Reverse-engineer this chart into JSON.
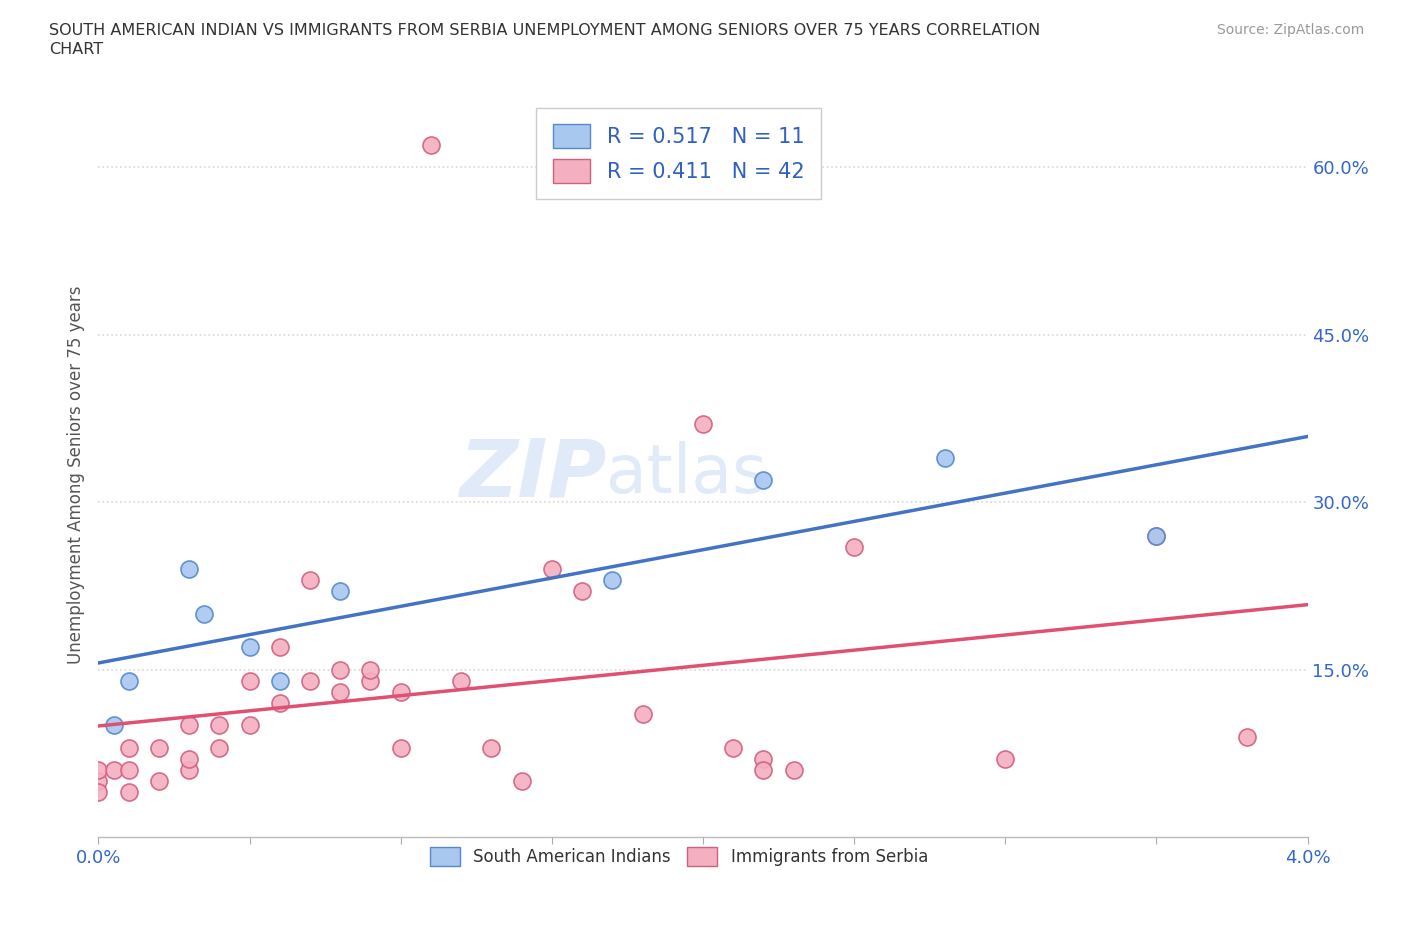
{
  "title_line1": "SOUTH AMERICAN INDIAN VS IMMIGRANTS FROM SERBIA UNEMPLOYMENT AMONG SENIORS OVER 75 YEARS CORRELATION",
  "title_line2": "CHART",
  "source": "Source: ZipAtlas.com",
  "ylabel": "Unemployment Among Seniors over 75 years",
  "xlim": [
    0.0,
    0.04
  ],
  "ylim": [
    0.0,
    0.65
  ],
  "xticks": [
    0.0,
    0.005,
    0.01,
    0.015,
    0.02,
    0.025,
    0.03,
    0.035,
    0.04
  ],
  "xticklabels": [
    "0.0%",
    "",
    "",
    "",
    "",
    "",
    "",
    "",
    "4.0%"
  ],
  "yticks": [
    0.15,
    0.3,
    0.45,
    0.6
  ],
  "yticklabels": [
    "15.0%",
    "30.0%",
    "45.0%",
    "60.0%"
  ],
  "blue_scatter_x": [
    0.0005,
    0.001,
    0.003,
    0.0035,
    0.005,
    0.006,
    0.008,
    0.017,
    0.022,
    0.028,
    0.035
  ],
  "blue_scatter_y": [
    0.1,
    0.14,
    0.24,
    0.2,
    0.17,
    0.14,
    0.22,
    0.23,
    0.32,
    0.34,
    0.27
  ],
  "pink_scatter_x": [
    0.0,
    0.0,
    0.0,
    0.0005,
    0.001,
    0.001,
    0.001,
    0.002,
    0.002,
    0.003,
    0.003,
    0.003,
    0.004,
    0.004,
    0.005,
    0.005,
    0.006,
    0.006,
    0.007,
    0.007,
    0.008,
    0.008,
    0.009,
    0.009,
    0.01,
    0.01,
    0.011,
    0.012,
    0.013,
    0.014,
    0.015,
    0.016,
    0.018,
    0.02,
    0.021,
    0.022,
    0.022,
    0.023,
    0.025,
    0.03,
    0.035,
    0.038
  ],
  "pink_scatter_y": [
    0.05,
    0.06,
    0.04,
    0.06,
    0.04,
    0.06,
    0.08,
    0.05,
    0.08,
    0.06,
    0.07,
    0.1,
    0.08,
    0.1,
    0.1,
    0.14,
    0.12,
    0.17,
    0.14,
    0.23,
    0.13,
    0.15,
    0.14,
    0.15,
    0.13,
    0.08,
    0.62,
    0.14,
    0.08,
    0.05,
    0.24,
    0.22,
    0.11,
    0.37,
    0.08,
    0.07,
    0.06,
    0.06,
    0.26,
    0.07,
    0.27,
    0.09
  ],
  "blue_color": "#a8c8f0",
  "pink_color": "#f4b0c0",
  "blue_edge_color": "#5588cc",
  "pink_edge_color": "#d06080",
  "blue_line_color": "#4472c4",
  "pink_line_color": "#e05070",
  "R_blue": 0.517,
  "N_blue": 11,
  "R_pink": 0.411,
  "N_pink": 42,
  "watermark_zip": "ZIP",
  "watermark_atlas": "atlas",
  "background_color": "#ffffff",
  "grid_color": "#d8d8d8",
  "legend_R_color": "#333333",
  "legend_N_color": "#3060c0"
}
